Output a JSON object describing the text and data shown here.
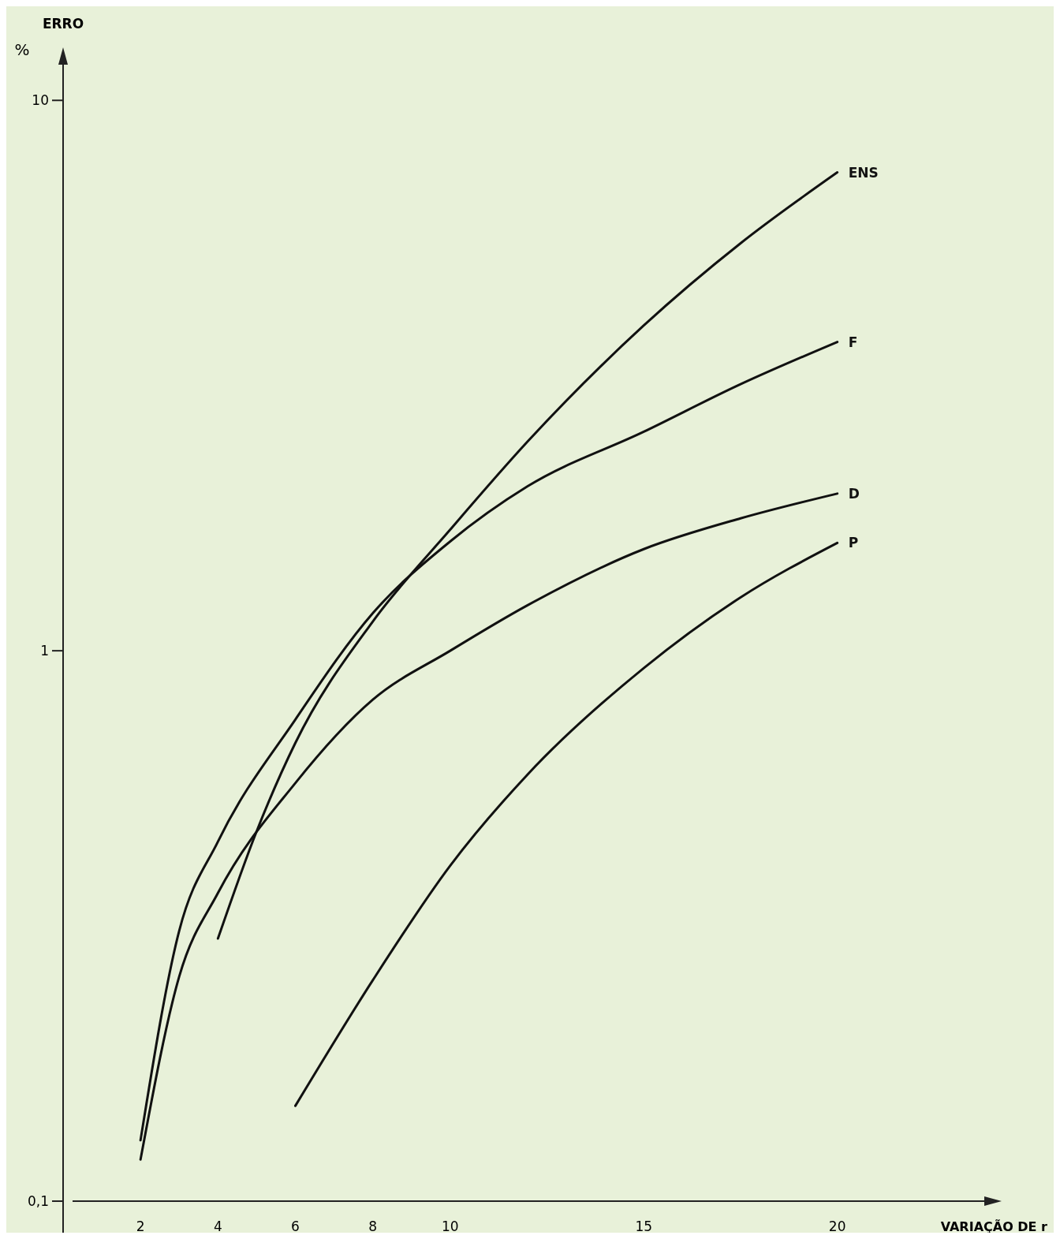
{
  "chart_data": {
    "type": "line",
    "xlabel": "VARIAÇÃO DE r",
    "ylabel": "ERRO",
    "annotations": [
      "%"
    ],
    "log": "y",
    "grid": false,
    "marker": "none",
    "line_style": "solid",
    "xlim": [
      0,
      24
    ],
    "xticks": [
      2,
      4,
      6,
      8,
      10,
      15,
      20
    ],
    "ylim": [
      0.1,
      12
    ],
    "yticks": [
      {
        "value": 0.1,
        "label": "0,1"
      },
      1,
      10
    ],
    "series": [
      {
        "name": "ENS",
        "color": "#111111",
        "x": [
          4,
          5,
          6,
          8,
          10,
          12,
          15,
          17.5,
          20
        ],
        "values": [
          0.3,
          0.47,
          0.68,
          1.13,
          1.66,
          2.4,
          3.9,
          5.5,
          7.4
        ]
      },
      {
        "name": "F",
        "color": "#111111",
        "x": [
          2,
          3,
          4,
          6,
          8,
          10,
          12,
          15,
          17.5,
          20
        ],
        "values": [
          0.129,
          0.31,
          0.45,
          0.75,
          1.17,
          1.58,
          1.99,
          2.5,
          3.05,
          3.64
        ]
      },
      {
        "name": "D",
        "color": "#111111",
        "x": [
          2,
          3,
          4,
          6,
          8,
          10,
          12,
          15,
          17.5,
          20
        ],
        "values": [
          0.119,
          0.256,
          0.363,
          0.575,
          0.815,
          1.0,
          1.21,
          1.53,
          1.74,
          1.93
        ]
      },
      {
        "name": "P",
        "color": "#111111",
        "x": [
          6,
          8,
          10,
          12,
          15,
          17.5,
          20
        ],
        "values": [
          0.149,
          0.252,
          0.407,
          0.596,
          0.93,
          1.25,
          1.57
        ]
      }
    ]
  }
}
